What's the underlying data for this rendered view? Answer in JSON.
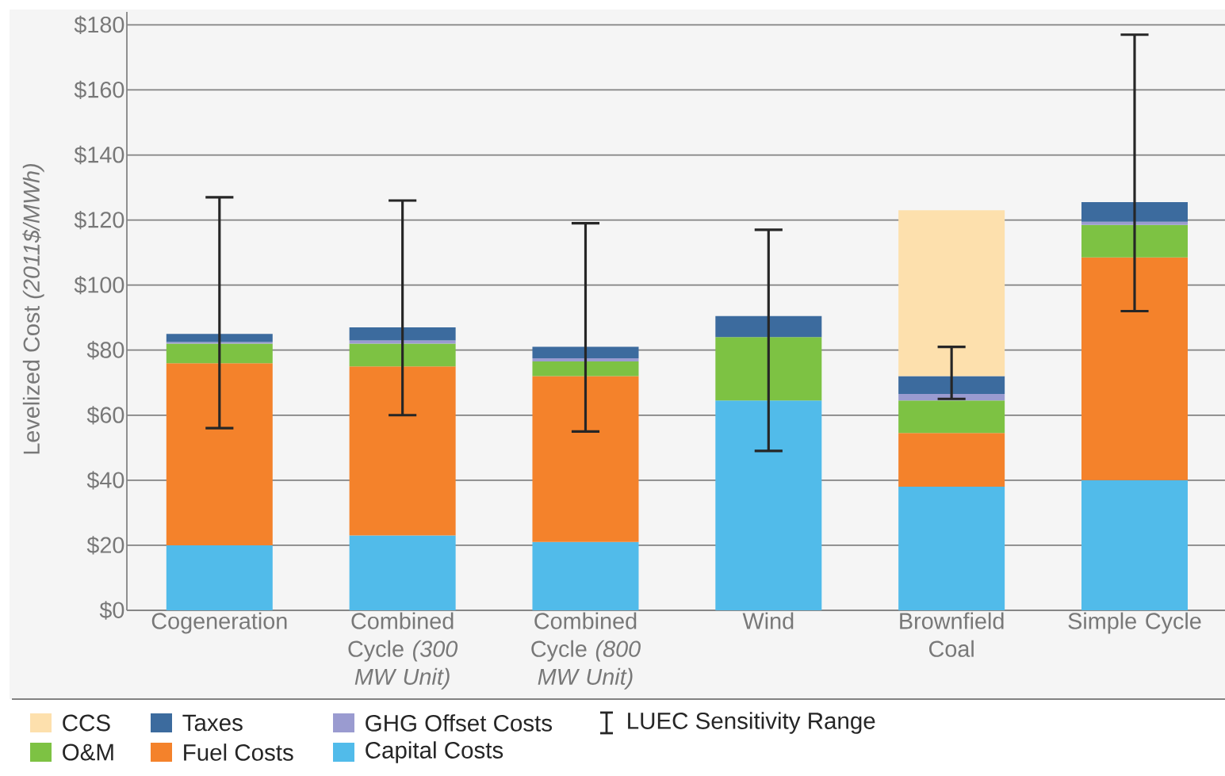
{
  "chart_data": {
    "type": "bar",
    "stacked": true,
    "ylabel": "Levelized Cost *(2011$/MWh)*",
    "categories": [
      "Cogeneration",
      "Combined Cycle *(300 MW Unit)*",
      "Combined Cycle *(800 MW Unit)*",
      "Wind",
      "Brownfield Coal",
      "Simple Cycle"
    ],
    "series": [
      {
        "name": "Capital Costs",
        "color": "#51bbea",
        "values": [
          20,
          23,
          21,
          64.5,
          38,
          40
        ]
      },
      {
        "name": "Fuel Costs",
        "color": "#f4822b",
        "values": [
          56,
          52,
          51,
          0,
          16.5,
          68.5
        ]
      },
      {
        "name": "O&M",
        "color": "#7dc243",
        "values": [
          6,
          7,
          4.5,
          19.5,
          10,
          10
        ]
      },
      {
        "name": "GHG Offset Costs",
        "color": "#9a9bd0",
        "values": [
          0.5,
          1,
          1,
          0,
          2,
          1
        ]
      },
      {
        "name": "Taxes",
        "color": "#3c6b9e",
        "values": [
          2.5,
          4,
          3.5,
          6.5,
          5.5,
          6
        ],
        "errors": [
          [
            56,
            127
          ],
          [
            60,
            126
          ],
          [
            55,
            119
          ],
          [
            49,
            117
          ],
          [
            65,
            81
          ],
          [
            92,
            177
          ]
        ]
      },
      {
        "name": "CCS",
        "color": "#fde0ad",
        "values": [
          null,
          null,
          null,
          null,
          51,
          null
        ]
      }
    ],
    "annotations": [
      "LUEC Sensitivity Range"
    ],
    "ylim": [
      0,
      184
    ],
    "yticks": [
      {
        "value": 0,
        "label": "$0"
      },
      {
        "value": 20,
        "label": "$20"
      },
      {
        "value": 40,
        "label": "$40"
      },
      {
        "value": 60,
        "label": "$60"
      },
      {
        "value": 80,
        "label": "$80"
      },
      {
        "value": 100,
        "label": "$100"
      },
      {
        "value": 120,
        "label": "$120"
      },
      {
        "value": 140,
        "label": "$140"
      },
      {
        "value": 160,
        "label": "$160"
      },
      {
        "value": 180,
        "label": "$180"
      }
    ],
    "grid": "y",
    "legend": "bottom"
  }
}
